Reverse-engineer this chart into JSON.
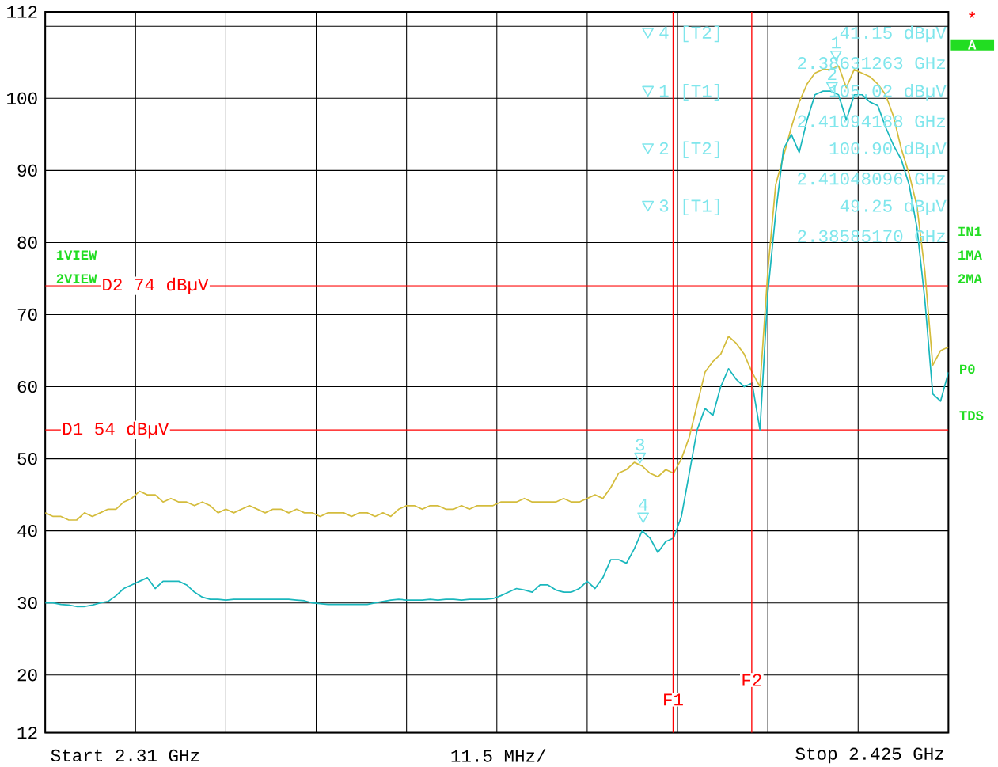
{
  "chart_data": {
    "type": "line",
    "categories": [
      null,
      null,
      null,
      null,
      null,
      null,
      null,
      null,
      null,
      null,
      null,
      null,
      null,
      null,
      null,
      null,
      null,
      null,
      null,
      null,
      null,
      null,
      null,
      null,
      null,
      null,
      null,
      null,
      null,
      null,
      null,
      null,
      null,
      null,
      null,
      null,
      null,
      null,
      null,
      null,
      null,
      null,
      null,
      null,
      null,
      null,
      null,
      null,
      null,
      null,
      null,
      null,
      null,
      null,
      null,
      null,
      null,
      null,
      null,
      null,
      null,
      null,
      null,
      null,
      null,
      null,
      null,
      null,
      null,
      null,
      null,
      null,
      null,
      null,
      null,
      null,
      null,
      null,
      null,
      null,
      null,
      null,
      null,
      null,
      null,
      null,
      null,
      null,
      null,
      null,
      null,
      null,
      null,
      null,
      null,
      null,
      null,
      null,
      null,
      null,
      null,
      null,
      null,
      null,
      null,
      null,
      null,
      null,
      null,
      null,
      null,
      null,
      null,
      null,
      null,
      null
    ],
    "ylim": [
      12,
      112
    ],
    "yticks": [
      12,
      20,
      30,
      40,
      50,
      60,
      70,
      80,
      90,
      100,
      {
        "value": 110,
        "label": null
      },
      112
    ],
    "tick_labels": "y",
    "grid": true,
    "series": [
      {
        "color": "#d4bc3c",
        "values": [
          42.5,
          42,
          42,
          41.5,
          41.5,
          42.5,
          42,
          42.5,
          43,
          43,
          44,
          44.5,
          45.5,
          45,
          45,
          44,
          44.5,
          44,
          44,
          43.5,
          44,
          43.5,
          42.5,
          43,
          42.5,
          43,
          43.5,
          43,
          42.5,
          43,
          43,
          42.5,
          43,
          42.5,
          42.5,
          42,
          42.5,
          42.5,
          42.5,
          42,
          42.5,
          42.5,
          42,
          42.5,
          42,
          43,
          43.5,
          43.5,
          43,
          43.5,
          43.5,
          43,
          43,
          43.5,
          43,
          43.5,
          43.5,
          43.5,
          44,
          44,
          44,
          44.5,
          44,
          44,
          44,
          44,
          44.5,
          44,
          44,
          44.5,
          45,
          44.5,
          46,
          48,
          48.5,
          49.5,
          49,
          48,
          47.5,
          48.5,
          48,
          50,
          53,
          57.5,
          62,
          63.5,
          64.5,
          67,
          66,
          64.5,
          62,
          60,
          76,
          88,
          92,
          96,
          99.5,
          102,
          103.5,
          104,
          104,
          104.5,
          101.5,
          104,
          103.5,
          103,
          102,
          100.5,
          97.5,
          93,
          89.5,
          85,
          76,
          63,
          65,
          65.5
        ]
      },
      {
        "color": "#1ab7bd",
        "values": [
          30,
          30,
          29.8,
          29.7,
          29.5,
          29.5,
          29.7,
          30,
          30.2,
          31,
          32,
          32.5,
          33,
          33.5,
          32,
          33,
          33,
          33,
          32.5,
          31.5,
          30.8,
          30.5,
          30.5,
          30.4,
          30.5,
          30.5,
          30.5,
          30.5,
          30.5,
          30.5,
          30.5,
          30.5,
          30.4,
          30.3,
          30,
          29.9,
          29.8,
          29.8,
          29.8,
          29.8,
          29.8,
          29.8,
          30,
          30.2,
          30.4,
          30.5,
          30.4,
          30.4,
          30.4,
          30.5,
          30.4,
          30.5,
          30.5,
          30.4,
          30.5,
          30.5,
          30.5,
          30.6,
          31,
          31.5,
          32,
          31.8,
          31.5,
          32.5,
          32.5,
          31.8,
          31.5,
          31.5,
          32,
          33,
          32,
          33.5,
          36,
          36,
          35.5,
          37.5,
          40,
          39,
          37,
          38.5,
          39,
          42,
          48,
          54,
          57,
          56,
          60,
          62.5,
          61,
          60,
          60.5,
          54,
          73,
          84,
          93,
          95,
          92.5,
          97,
          100.5,
          101,
          101,
          100.5,
          97,
          100.5,
          100.5,
          99.5,
          99,
          96,
          93.5,
          91.5,
          88,
          82,
          72,
          59,
          58,
          62
        ]
      }
    ],
    "ref_lines": [
      {
        "axis": "y",
        "value": 54,
        "label": "D1 54 dBµV",
        "color": "#ff0000"
      },
      {
        "axis": "y",
        "value": 74,
        "label": "D2 74 dBµV",
        "color": "#ff0000"
      }
    ],
    "annotations": [
      "Start 2.31 GHz",
      "11.5 MHz/",
      "Stop 2.425 GHz",
      "4 [T2]",
      "41.15 dBµV",
      "2.38631263 GHz",
      "1 [T1]",
      "105.02 dBµV",
      "2.41094188 GHz",
      "2 [T2]",
      "100.90 dBµV",
      "2.41048096 GHz",
      "3 [T1]",
      "49.25 dBµV",
      "2.38585170 GHz",
      "1VIEW",
      "2VIEW",
      "*",
      "A",
      "IN1",
      "1MA",
      "2MA",
      "P0",
      "TDS",
      "4",
      "1",
      "2",
      "3",
      "F1",
      "F2"
    ]
  }
}
